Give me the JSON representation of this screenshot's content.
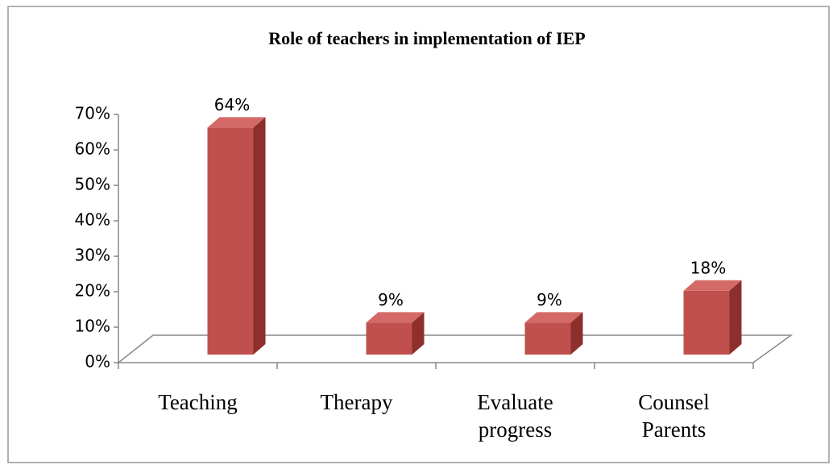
{
  "chart_data": {
    "type": "bar",
    "title": "Role of teachers in implementation of IEP",
    "categories": [
      "Teaching",
      "Therapy",
      "Evaluate progress",
      "Counsel Parents"
    ],
    "values": [
      64,
      9,
      9,
      18
    ],
    "value_labels": [
      "64%",
      "9%",
      "9%",
      "18%"
    ],
    "color": "#c0504d",
    "ylim": [
      0,
      70
    ],
    "yticks": [
      {
        "value": 0,
        "label": "0%"
      },
      {
        "value": 10,
        "label": "10%"
      },
      {
        "value": 20,
        "label": "20%"
      },
      {
        "value": 30,
        "label": "30%"
      },
      {
        "value": 40,
        "label": "40%"
      },
      {
        "value": 50,
        "label": "50%"
      },
      {
        "value": 60,
        "label": "60%"
      },
      {
        "value": 70,
        "label": "70%"
      }
    ],
    "grid": false
  }
}
